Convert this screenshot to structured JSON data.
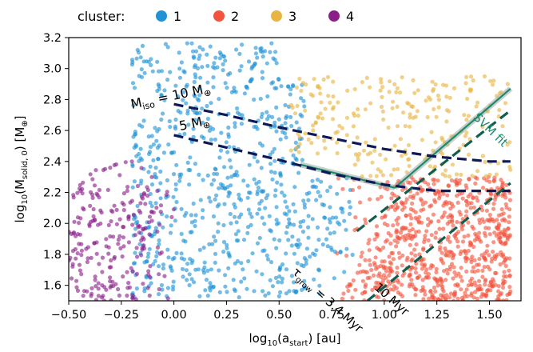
{
  "chart_data": {
    "type": "scatter",
    "legend": {
      "title": "cluster:",
      "placement": "top",
      "entries": [
        {
          "label": "1",
          "color": "#1f93d6"
        },
        {
          "label": "2",
          "color": "#f2543d"
        },
        {
          "label": "3",
          "color": "#e8b442"
        },
        {
          "label": "4",
          "color": "#8a1f8a"
        }
      ]
    },
    "xlabel_parts": {
      "pre": "log",
      "sub": "10",
      "open": "(a",
      "var_sub": "start",
      "close": ") [au]"
    },
    "ylabel_parts": {
      "pre": "log",
      "sub": "10",
      "open": "(M",
      "var_sub": "solid, 0",
      "close": ") [M",
      "sym": "⊕",
      "end": "]"
    },
    "xlim": [
      -0.5,
      1.65
    ],
    "ylim": [
      1.5,
      3.2
    ],
    "xticks": [
      "-0.50",
      "-0.25",
      "0.00",
      "0.25",
      "0.50",
      "0.75",
      "1.00",
      "1.25",
      "1.50"
    ],
    "yticks": [
      "1.6",
      "1.8",
      "2.0",
      "2.2",
      "2.4",
      "2.6",
      "2.8",
      "3.0",
      "3.2"
    ],
    "xtick_values": [
      -0.5,
      -0.25,
      0.0,
      0.25,
      0.5,
      0.75,
      1.0,
      1.25,
      1.5
    ],
    "ytick_values": [
      1.6,
      1.8,
      2.0,
      2.2,
      2.4,
      2.6,
      2.8,
      3.0,
      3.2
    ],
    "grid": false,
    "series": [
      {
        "name": "1",
        "color": "#1f93d6",
        "region": {
          "x": [
            -0.2,
            0.85
          ],
          "y": [
            1.52,
            3.17
          ]
        }
      },
      {
        "name": "2",
        "color": "#f2543d",
        "region": {
          "x": [
            0.75,
            1.6
          ],
          "y": [
            1.5,
            2.3
          ]
        }
      },
      {
        "name": "3",
        "color": "#e8b442",
        "region": {
          "x": [
            0.55,
            1.6
          ],
          "y": [
            2.3,
            2.95
          ]
        }
      },
      {
        "name": "4",
        "color": "#8a1f8a",
        "region": {
          "x": [
            -0.5,
            0.0
          ],
          "y": [
            1.5,
            2.45
          ]
        }
      }
    ],
    "curves": [
      {
        "name": "M_iso_10",
        "color": "#0d1a57",
        "style": "dashed",
        "x": [
          0.0,
          0.25,
          0.5,
          0.75,
          1.0,
          1.25,
          1.5,
          1.6
        ],
        "y": [
          2.77,
          2.7,
          2.62,
          2.55,
          2.48,
          2.43,
          2.4,
          2.4
        ]
      },
      {
        "name": "M_iso_5",
        "color": "#0d1a57",
        "style": "dashed",
        "x": [
          0.0,
          0.25,
          0.5,
          0.75,
          1.0,
          1.25,
          1.5,
          1.6
        ],
        "y": [
          2.57,
          2.49,
          2.41,
          2.32,
          2.25,
          2.21,
          2.21,
          2.21
        ]
      },
      {
        "name": "t_grow_3.4",
        "color": "#115e4e",
        "style": "dashed",
        "x": [
          0.87,
          1.6
        ],
        "y": [
          1.95,
          2.73
        ]
      },
      {
        "name": "t_grow_10",
        "color": "#115e4e",
        "style": "dashed",
        "x": [
          0.92,
          1.6
        ],
        "y": [
          1.5,
          2.26
        ]
      }
    ],
    "svm_fit": {
      "name": "SVM fit",
      "color": "#1b8a6b",
      "segments": [
        {
          "x": [
            0.6,
            1.05
          ],
          "y": [
            2.38,
            2.23
          ]
        },
        {
          "x": [
            1.05,
            1.6
          ],
          "y": [
            2.23,
            2.87
          ]
        }
      ]
    },
    "annotations": {
      "miso": {
        "base": "M",
        "sub": "iso",
        "rest": " = 10 M",
        "sym": "⊕",
        "x": -0.2,
        "y": 2.74,
        "angle": 12
      },
      "m5": {
        "text": "5 M",
        "sym": "⊕",
        "x": 0.03,
        "y": 2.6,
        "angle": 12
      },
      "tgrow": {
        "base": "τ",
        "sub": "grow",
        "rest": " = 3.4 Myr",
        "x": 0.56,
        "y": 1.68,
        "angle": -42
      },
      "t10": {
        "text": "10 Myr",
        "x": 0.95,
        "y": 1.58,
        "angle": -42
      },
      "svm": {
        "text": "SVM fit",
        "x": 1.42,
        "y": 2.68,
        "angle": -44
      }
    }
  }
}
